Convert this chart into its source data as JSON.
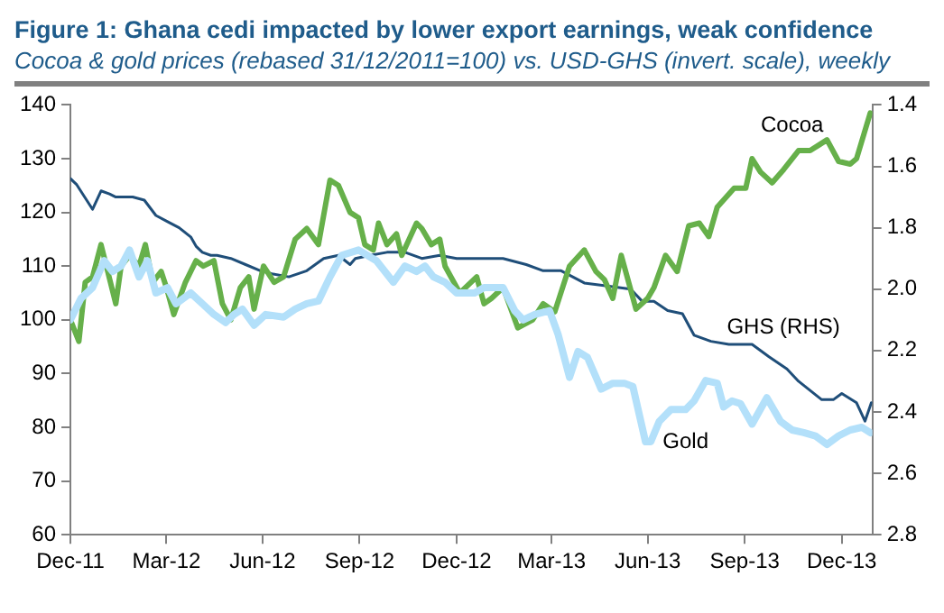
{
  "chart_data": {
    "type": "line",
    "title": "Figure 1: Ghana cedi impacted by lower export earnings, weak confidence",
    "subtitle": "Cocoa & gold prices (rebased 31/12/2011=100) vs. USD-GHS (invert. scale), weekly",
    "series": [
      {
        "name": "Gold",
        "color": "#b3e0fa",
        "x": [
          "2011-12-31",
          "2012-01-10",
          "2012-01-21",
          "2012-02-01",
          "2012-02-09",
          "2012-02-17",
          "2012-02-25",
          "2012-03-05",
          "2012-03-13",
          "2012-03-21",
          "2012-04-01",
          "2012-04-09",
          "2012-04-23",
          "2012-05-04",
          "2012-05-15",
          "2012-05-26",
          "2012-06-03",
          "2012-06-11",
          "2012-06-22",
          "2012-07-03",
          "2012-07-20",
          "2012-07-31",
          "2012-08-11",
          "2012-08-22",
          "2012-09-02",
          "2012-09-13",
          "2012-09-29",
          "2012-10-16",
          "2012-11-01",
          "2012-11-12",
          "2012-11-23",
          "2012-12-01",
          "2012-12-09",
          "2012-12-20",
          "2012-12-31",
          "2013-01-17",
          "2013-01-26",
          "2013-02-02",
          "2013-02-13",
          "2013-02-24",
          "2013-03-04",
          "2013-03-15",
          "2013-03-29",
          "2013-04-06",
          "2013-04-17",
          "2013-04-25",
          "2013-05-04",
          "2013-05-17",
          "2013-05-28",
          "2013-06-08",
          "2013-06-16",
          "2013-06-28",
          "2013-07-03",
          "2013-07-11",
          "2013-07-22",
          "2013-08-05",
          "2013-08-13",
          "2013-08-24",
          "2013-09-04",
          "2013-09-10",
          "2013-09-18",
          "2013-09-26",
          "2013-10-07",
          "2013-10-21",
          "2013-11-03",
          "2013-11-14",
          "2013-11-25",
          "2013-12-06",
          "2013-12-17",
          "2013-12-28",
          "2014-01-08",
          "2014-01-19",
          "2014-01-27"
        ],
        "values": [
          100,
          104,
          106,
          111,
          109,
          110,
          113,
          108,
          111,
          105,
          106,
          103,
          105,
          103,
          101,
          99.5,
          101,
          102,
          99,
          101,
          100.5,
          102,
          103,
          103.5,
          108,
          112,
          113,
          111,
          107,
          110,
          109,
          110,
          108,
          107,
          105,
          105,
          106,
          106,
          106,
          101.7,
          100,
          101,
          101.7,
          97.4,
          89.3,
          94.1,
          93,
          87.1,
          88.2,
          88.2,
          87.6,
          77.3,
          77.3,
          81.1,
          83.3,
          83.3,
          84.9,
          88.7,
          88.2,
          83.8,
          84.9,
          84.4,
          80.6,
          85.5,
          81.1,
          79.5,
          79,
          78.4,
          76.8,
          78.4,
          79.5,
          80,
          79
        ]
      },
      {
        "name": "Cocoa",
        "color": "#66b04a",
        "x": [
          "2011-12-31",
          "2012-01-08",
          "2012-01-14",
          "2012-01-21",
          "2012-01-29",
          "2012-02-12",
          "2012-02-17",
          "2012-02-25",
          "2012-03-05",
          "2012-03-11",
          "2012-03-18",
          "2012-03-26",
          "2012-03-31",
          "2012-04-07",
          "2012-04-18",
          "2012-04-28",
          "2012-05-05",
          "2012-05-15",
          "2012-05-23",
          "2012-05-31",
          "2012-06-09",
          "2012-06-17",
          "2012-06-22",
          "2012-07-01",
          "2012-07-11",
          "2012-07-20",
          "2012-07-31",
          "2012-08-11",
          "2012-08-22",
          "2012-09-02",
          "2012-09-10",
          "2012-09-21",
          "2012-09-29",
          "2012-10-05",
          "2012-10-13",
          "2012-10-18",
          "2012-10-26",
          "2012-11-04",
          "2012-11-09",
          "2012-11-23",
          "2012-11-28",
          "2012-12-07",
          "2012-12-15",
          "2012-12-20",
          "2013-01-03",
          "2013-01-19",
          "2013-01-26",
          "2013-02-02",
          "2013-02-13",
          "2013-02-27",
          "2013-03-13",
          "2013-03-23",
          "2013-04-03",
          "2013-04-17",
          "2013-05-01",
          "2013-05-12",
          "2013-05-20",
          "2013-05-28",
          "2013-06-05",
          "2013-06-19",
          "2013-06-30",
          "2013-07-06",
          "2013-07-17",
          "2013-07-28",
          "2013-08-08",
          "2013-08-18",
          "2013-08-27",
          "2013-09-04",
          "2013-09-20",
          "2013-10-01",
          "2013-10-07",
          "2013-10-15",
          "2013-10-26",
          "2013-11-06",
          "2013-11-20",
          "2013-12-01",
          "2013-12-09",
          "2013-12-17",
          "2013-12-28",
          "2014-01-08",
          "2014-01-14",
          "2014-01-27"
        ],
        "values": [
          100,
          96,
          107,
          108,
          114,
          103,
          110,
          112,
          110,
          114,
          107,
          109,
          106,
          101,
          107,
          111,
          110,
          111,
          103,
          100,
          106,
          108,
          102,
          110,
          107,
          108,
          115,
          117,
          114,
          126,
          125,
          120,
          119,
          114,
          113,
          118,
          114,
          116,
          112,
          118,
          117,
          114,
          115,
          110,
          105,
          108,
          103,
          104,
          106,
          98.5,
          100,
          103,
          101.5,
          110,
          113,
          109,
          107.5,
          104,
          112,
          102,
          104,
          106,
          112,
          109,
          117.5,
          118,
          115.5,
          121,
          124.5,
          124.5,
          130,
          127.5,
          125.5,
          128,
          131.5,
          131.5,
          132.5,
          133.5,
          129.5,
          129,
          130,
          138.5
        ]
      },
      {
        "name": "GHS (RHS)",
        "color": "#1f4e79",
        "axis": "y2",
        "x": [
          "2011-12-31",
          "2012-01-06",
          "2012-01-21",
          "2012-01-29",
          "2012-02-06",
          "2012-02-12",
          "2012-02-28",
          "2012-03-10",
          "2012-03-21",
          "2012-04-01",
          "2012-04-12",
          "2012-04-23",
          "2012-04-28",
          "2012-05-04",
          "2012-05-12",
          "2012-05-18",
          "2012-05-31",
          "2012-06-14",
          "2012-06-28",
          "2012-07-09",
          "2012-07-25",
          "2012-08-11",
          "2012-08-27",
          "2012-09-10",
          "2012-09-21",
          "2012-09-26",
          "2012-10-10",
          "2012-10-26",
          "2012-11-12",
          "2012-11-28",
          "2012-12-15",
          "2012-12-31",
          "2013-01-17",
          "2013-01-26",
          "2013-02-02",
          "2013-02-13",
          "2013-03-07",
          "2013-03-23",
          "2013-04-09",
          "2013-05-01",
          "2013-05-23",
          "2013-06-14",
          "2013-06-25",
          "2013-07-06",
          "2013-07-19",
          "2013-08-02",
          "2013-08-13",
          "2013-08-29",
          "2013-09-15",
          "2013-10-07",
          "2013-10-23",
          "2013-11-09",
          "2013-11-20",
          "2013-12-01",
          "2013-12-12",
          "2013-12-23",
          "2013-12-31",
          "2014-01-14",
          "2014-01-22",
          "2014-01-28"
        ],
        "values": [
          1.64,
          1.66,
          1.74,
          1.68,
          1.69,
          1.7,
          1.7,
          1.71,
          1.76,
          1.78,
          1.8,
          1.83,
          1.86,
          1.88,
          1.89,
          1.89,
          1.9,
          1.92,
          1.94,
          1.95,
          1.96,
          1.94,
          1.9,
          1.89,
          1.92,
          1.9,
          1.89,
          1.88,
          1.88,
          1.9,
          1.89,
          1.9,
          1.9,
          1.9,
          1.9,
          1.9,
          1.92,
          1.94,
          1.94,
          1.98,
          1.99,
          2.0,
          2.04,
          2.04,
          2.07,
          2.08,
          2.15,
          2.17,
          2.18,
          2.18,
          2.22,
          2.26,
          2.3,
          2.33,
          2.36,
          2.36,
          2.34,
          2.37,
          2.43,
          2.37
        ]
      }
    ],
    "xlim": [
      "2011-12-31",
      "2014-01-29"
    ],
    "xticks": [
      {
        "value": "2011-12-31",
        "label": "Dec-11"
      },
      {
        "value": "2012-03-31",
        "label": "Mar-12"
      },
      {
        "value": "2012-06-30",
        "label": "Jun-12"
      },
      {
        "value": "2012-09-30",
        "label": "Sep-12"
      },
      {
        "value": "2012-12-31",
        "label": "Dec-12"
      },
      {
        "value": "2013-03-31",
        "label": "Mar-13"
      },
      {
        "value": "2013-06-30",
        "label": "Jun-13"
      },
      {
        "value": "2013-09-30",
        "label": "Sep-13"
      },
      {
        "value": "2013-12-31",
        "label": "Dec-13"
      }
    ],
    "ylim": [
      60,
      140
    ],
    "yticks": [
      60,
      70,
      80,
      90,
      100,
      110,
      120,
      130,
      140
    ],
    "y2lim": [
      2.8,
      1.4
    ],
    "y2ticks": [
      1.4,
      1.6,
      1.8,
      {
        "value": 2,
        "label": "2.0"
      },
      2.2,
      2.4,
      2.6,
      2.8
    ],
    "grid": false,
    "legend": false,
    "marker": "none",
    "line_style": "solid"
  }
}
